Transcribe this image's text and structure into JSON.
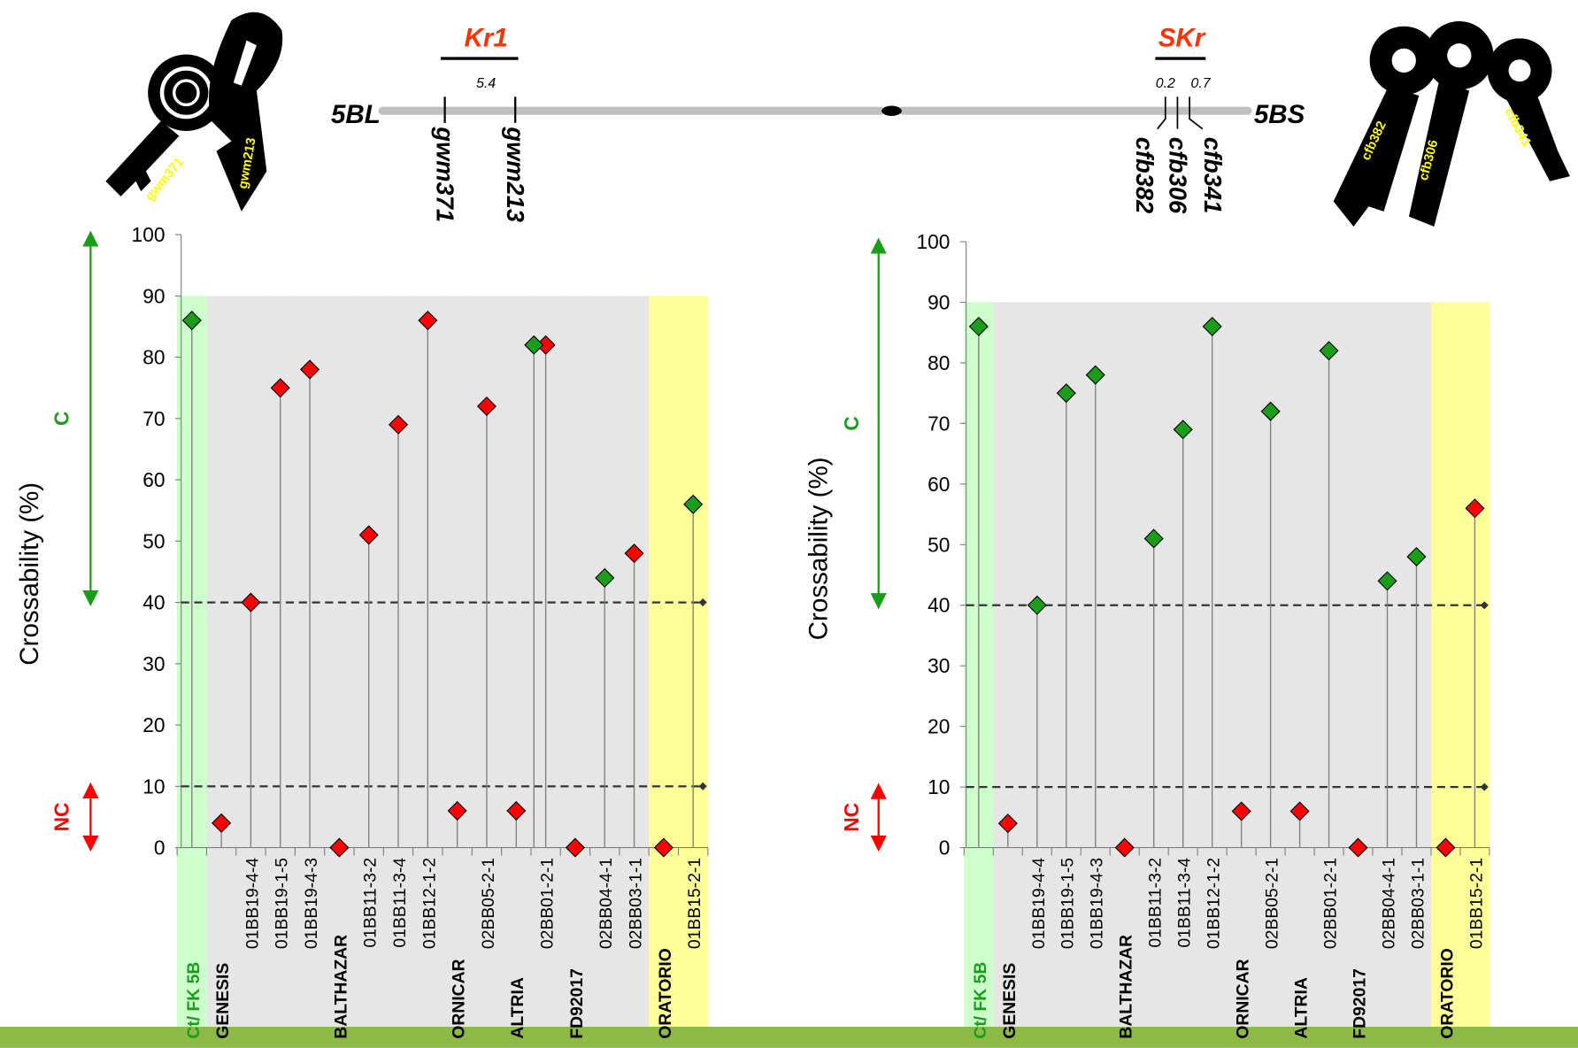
{
  "chart_data": [
    {
      "type": "lollipop",
      "y_label": "Crossability (%)",
      "categories": [
        "Ct/ FK 5B",
        "GENESIS",
        "01BB19-4-4",
        "01BB19-1-5",
        "01BB19-4-3",
        "BALTHAZAR",
        "01BB11-3-2",
        "01BB11-3-4",
        "01BB12-1-2",
        "ORNICAR",
        "02BB05-2-1",
        "ALTRIA",
        "02BB01-2-1",
        "FD92017",
        "02BB04-4-1",
        "02BB03-1-1",
        "ORATORIO",
        "01BB15-2-1"
      ],
      "label_weights": [
        "bold",
        "bold",
        "normal",
        "normal",
        "normal",
        "bold",
        "normal",
        "normal",
        "normal",
        "bold",
        "normal",
        "bold",
        "normal",
        "bold",
        "normal",
        "normal",
        "bold",
        "normal"
      ],
      "label_colors": [
        "#1a9e1a",
        "#000000",
        "#000000",
        "#000000",
        "#000000",
        "#000000",
        "#000000",
        "#000000",
        "#000000",
        "#000000",
        "#000000",
        "#000000",
        "#000000",
        "#000000",
        "#000000",
        "#000000",
        "#000000",
        "#000000"
      ],
      "category_backgrounds": [
        "#ccffcc",
        "#e6e6e6",
        "#e6e6e6",
        "#e6e6e6",
        "#e6e6e6",
        "#e6e6e6",
        "#e6e6e6",
        "#e6e6e6",
        "#e6e6e6",
        "#e6e6e6",
        "#e6e6e6",
        "#e6e6e6",
        "#e6e6e6",
        "#e6e6e6",
        "#e6e6e6",
        "#e6e6e6",
        "#ffff99",
        "#ffff99"
      ],
      "series": [
        {
          "values": [
            86,
            4,
            40,
            75,
            78,
            0,
            51,
            69,
            86,
            6,
            72,
            6,
            82,
            0,
            44,
            48,
            0,
            56
          ],
          "colors": [
            "#1a9e1a",
            "#ff0000",
            "#ff0000",
            "#ff0000",
            "#ff0000",
            "#ff0000",
            "#ff0000",
            "#ff0000",
            "#ff0000",
            "#ff0000",
            "#ff0000",
            "#ff0000",
            "#ff0000",
            "#ff0000",
            "#1a9e1a",
            "#ff0000",
            "#ff0000",
            "#1a9e1a"
          ]
        },
        {
          "values": [
            null,
            null,
            null,
            null,
            null,
            null,
            null,
            null,
            null,
            null,
            null,
            null,
            82,
            null,
            null,
            null,
            null,
            null
          ],
          "color": "#1a9e1a"
        }
      ],
      "ylim": [
        0,
        100
      ],
      "yticks": [
        0,
        10,
        20,
        30,
        40,
        50,
        60,
        70,
        80,
        90,
        100
      ],
      "background_top": 90,
      "reference_lines": [
        40,
        10
      ],
      "zones": [
        {
          "label": "C",
          "from": 40,
          "to": 100,
          "color": "#1a9e1a"
        },
        {
          "label": "NC",
          "from": 0,
          "to": 10,
          "color": "#ff0000"
        }
      ]
    },
    {
      "type": "lollipop",
      "y_label": "Crossability (%)",
      "categories": [
        "Ct/ FK 5B",
        "GENESIS",
        "01BB19-4-4",
        "01BB19-1-5",
        "01BB19-4-3",
        "BALTHAZAR",
        "01BB11-3-2",
        "01BB11-3-4",
        "01BB12-1-2",
        "ORNICAR",
        "02BB05-2-1",
        "ALTRIA",
        "02BB01-2-1",
        "FD92017",
        "02BB04-4-1",
        "02BB03-1-1",
        "ORATORIO",
        "01BB15-2-1"
      ],
      "label_weights": [
        "bold",
        "bold",
        "normal",
        "normal",
        "normal",
        "bold",
        "normal",
        "normal",
        "normal",
        "bold",
        "normal",
        "bold",
        "normal",
        "bold",
        "normal",
        "normal",
        "bold",
        "normal"
      ],
      "label_colors": [
        "#1a9e1a",
        "#000000",
        "#000000",
        "#000000",
        "#000000",
        "#000000",
        "#000000",
        "#000000",
        "#000000",
        "#000000",
        "#000000",
        "#000000",
        "#000000",
        "#000000",
        "#000000",
        "#000000",
        "#000000",
        "#000000"
      ],
      "category_backgrounds": [
        "#ccffcc",
        "#e6e6e6",
        "#e6e6e6",
        "#e6e6e6",
        "#e6e6e6",
        "#e6e6e6",
        "#e6e6e6",
        "#e6e6e6",
        "#e6e6e6",
        "#e6e6e6",
        "#e6e6e6",
        "#e6e6e6",
        "#e6e6e6",
        "#e6e6e6",
        "#e6e6e6",
        "#e6e6e6",
        "#ffff99",
        "#ffff99"
      ],
      "series": [
        {
          "values": [
            86,
            4,
            40,
            75,
            78,
            0,
            51,
            69,
            86,
            6,
            72,
            6,
            82,
            0,
            44,
            48,
            0,
            56
          ],
          "colors": [
            "#1a9e1a",
            "#ff0000",
            "#1a9e1a",
            "#1a9e1a",
            "#1a9e1a",
            "#ff0000",
            "#1a9e1a",
            "#1a9e1a",
            "#1a9e1a",
            "#ff0000",
            "#1a9e1a",
            "#ff0000",
            "#1a9e1a",
            "#ff0000",
            "#1a9e1a",
            "#1a9e1a",
            "#ff0000",
            "#ff0000"
          ]
        }
      ],
      "ylim": [
        0,
        100
      ],
      "yticks": [
        0,
        10,
        20,
        30,
        40,
        50,
        60,
        70,
        80,
        90,
        100
      ],
      "background_top": 90,
      "reference_lines": [
        40,
        10
      ],
      "zones": [
        {
          "label": "C",
          "from": 40,
          "to": 100,
          "color": "#1a9e1a"
        },
        {
          "label": "NC",
          "from": 0,
          "to": 10,
          "color": "#ff0000"
        }
      ]
    }
  ],
  "map": {
    "left": {
      "gene": "Kr1",
      "distance": "5.4",
      "arm": "5BL",
      "markers": [
        "gwm371",
        "gwm213"
      ]
    },
    "right": {
      "gene": "SKr",
      "distances": [
        "0.2",
        "0.7"
      ],
      "arm": "5BS",
      "markers": [
        "cfb382",
        "cfb306",
        "cfb341"
      ]
    }
  }
}
